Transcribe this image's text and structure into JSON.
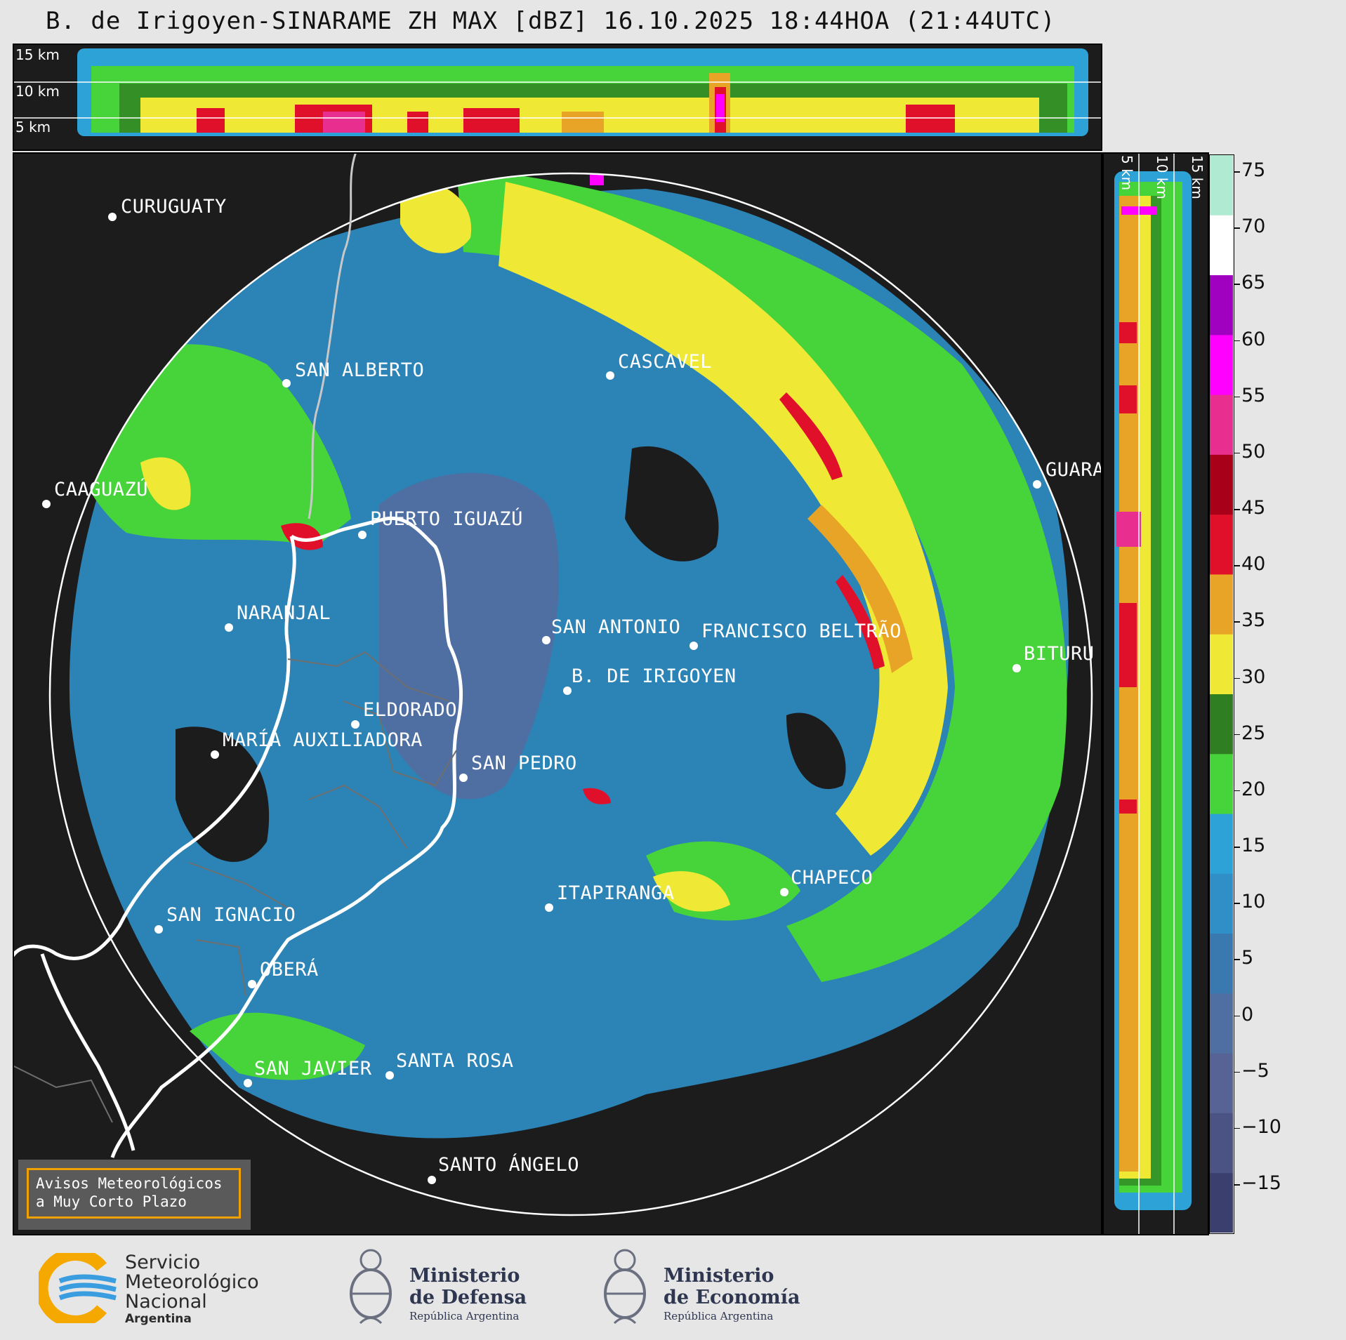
{
  "title": "B. de Irigoyen-SINARAME ZH MAX [dBZ] 16.10.2025 18:44HOA (21:44UTC)",
  "top_panel": {
    "height_labels": [
      "15 km",
      "10 km",
      "5 km"
    ]
  },
  "side_panel": {
    "height_labels": [
      "5 km",
      "10 km",
      "15 km"
    ]
  },
  "cities": [
    {
      "name": "CURUGUATY"
    },
    {
      "name": "SAN ALBERTO"
    },
    {
      "name": "CASCAVEL"
    },
    {
      "name": "CAAGUAZÚ"
    },
    {
      "name": "GUARA"
    },
    {
      "name": "PUERTO IGUAZÚ"
    },
    {
      "name": "NARANJAL"
    },
    {
      "name": "SAN ANTONIO"
    },
    {
      "name": "FRANCISCO BELTRÃO"
    },
    {
      "name": "BITURU"
    },
    {
      "name": "B. DE IRIGOYEN"
    },
    {
      "name": "ELDORADO"
    },
    {
      "name": "MARÍA AUXILIADORA"
    },
    {
      "name": "SAN PEDRO"
    },
    {
      "name": "CHAPECO"
    },
    {
      "name": "ITAPIRANGA"
    },
    {
      "name": "SAN IGNACIO"
    },
    {
      "name": "OBERÁ"
    },
    {
      "name": "SAN JAVIER"
    },
    {
      "name": "SANTA ROSA"
    },
    {
      "name": "SANTO ÁNGELO"
    }
  ],
  "colorbar": {
    "unit": "dBZ",
    "ticks": [
      "75",
      "70",
      "65",
      "60",
      "55",
      "50",
      "45",
      "40",
      "35",
      "30",
      "25",
      "20",
      "15",
      "10",
      "5",
      "0",
      "−5",
      "−10",
      "−15"
    ],
    "colors": [
      "#3a3f6e",
      "#4a5384",
      "#566394",
      "#4f6fa3",
      "#3a78b0",
      "#2f8fc6",
      "#2da2d6",
      "#47d43a",
      "#2f7e22",
      "#efe936",
      "#e8a426",
      "#e0102a",
      "#a80018",
      "#e82e8e",
      "#ff00ff",
      "#a000c0",
      "#ffffff",
      "#b0ead2"
    ]
  },
  "warning_box": {
    "line1": "Avisos Meteorológicos",
    "line2": "a Muy Corto Plazo"
  },
  "footer": {
    "smn_line1": "Servicio",
    "smn_line2": "Meteorológico",
    "smn_line3": "Nacional",
    "smn_line4": "Argentina",
    "defensa_line1": "Ministerio",
    "defensa_line2": "de Defensa",
    "defensa_line3": "República Argentina",
    "economia_line1": "Ministerio",
    "economia_line2": "de Economía",
    "economia_line3": "República Argentina"
  }
}
